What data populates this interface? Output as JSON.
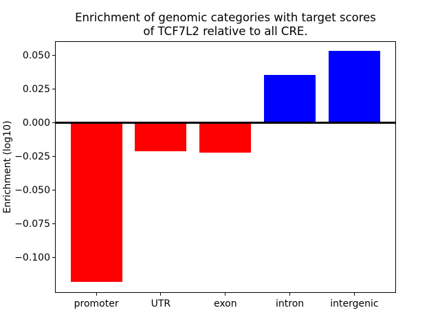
{
  "chart_data": {
    "type": "bar",
    "title": "Enrichment of genomic categories with target scores\nof TCF7L2 relative to all CRE.",
    "title_line1": "Enrichment of genomic categories with target scores",
    "title_line2": "of TCF7L2 relative to all CRE.",
    "xlabel": "",
    "ylabel": "Enrichment (log10)",
    "categories": [
      "promoter",
      "UTR",
      "exon",
      "intron",
      "intergenic"
    ],
    "values": [
      -0.118,
      -0.021,
      -0.022,
      0.0355,
      0.0535
    ],
    "bar_colors": [
      "#ff0000",
      "#ff0000",
      "#ff0000",
      "#0000ff",
      "#0000ff"
    ],
    "negative_color": "#ff0000",
    "positive_color": "#0000ff",
    "ylim": [
      -0.126,
      0.0605
    ],
    "yticks": [
      0.05,
      0.025,
      0.0,
      -0.025,
      -0.05,
      -0.075,
      -0.1
    ],
    "ytick_labels": [
      "0.050",
      "0.025",
      "0.000",
      "−0.025",
      "−0.050",
      "−0.075",
      "−0.100"
    ],
    "bar_width_fraction": 0.8,
    "grid": false,
    "legend": null,
    "zero_line": true,
    "background": "#ffffff"
  }
}
